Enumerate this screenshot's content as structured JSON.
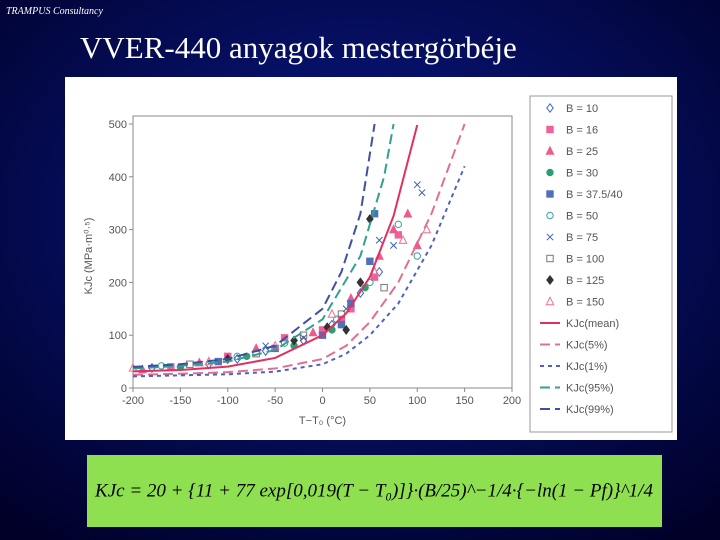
{
  "header": "TRAMPUS Consultancy",
  "title": "VVER-440 anyagok mestergörbéje",
  "formula": "KJc = 20 + {11 + 77 exp[0,019(T − T₀)]}·(B/25)^−1/4·{−ln(1 − Pf)}^1/4",
  "chart_data": {
    "type": "scatter",
    "xlabel": "T−T₀ (°C)",
    "ylabel": "KJc (MPa·m⁰·⁵)",
    "xlim": [
      -200,
      200
    ],
    "xticks": [
      -200,
      -150,
      -100,
      -50,
      0,
      50,
      100,
      150,
      200
    ],
    "ylim": [
      0,
      500
    ],
    "yticks": [
      0,
      100,
      200,
      300,
      400,
      500
    ],
    "legend": "right",
    "series": [
      {
        "name": "B = 10",
        "marker": "diamond-open",
        "color": "#3a66c8",
        "x": [
          -180,
          -120,
          -60,
          -20,
          10,
          40,
          60,
          -90
        ],
        "values": [
          38,
          45,
          70,
          90,
          120,
          180,
          220,
          55
        ]
      },
      {
        "name": "B = 16",
        "marker": "square",
        "color": "#f0609a",
        "x": [
          -160,
          -100,
          -40,
          0,
          30,
          55,
          80,
          20
        ],
        "values": [
          40,
          60,
          95,
          110,
          150,
          210,
          290,
          130
        ]
      },
      {
        "name": "B = 25",
        "marker": "triangle",
        "color": "#f05a8a",
        "x": [
          -190,
          -130,
          -70,
          -10,
          30,
          60,
          75,
          90,
          100
        ],
        "values": [
          35,
          48,
          75,
          105,
          170,
          250,
          300,
          330,
          270
        ]
      },
      {
        "name": "B = 30",
        "marker": "circle",
        "color": "#2aa070",
        "x": [
          -150,
          -80,
          -30,
          10,
          45
        ],
        "values": [
          40,
          60,
          80,
          110,
          190
        ]
      },
      {
        "name": "B = 37.5/40",
        "marker": "square",
        "color": "#5070b8",
        "x": [
          -110,
          -50,
          0,
          30,
          50,
          55,
          20
        ],
        "values": [
          50,
          75,
          100,
          160,
          240,
          330,
          120
        ]
      },
      {
        "name": "B = 50",
        "marker": "circle-open",
        "color": "#3aa0a0",
        "x": [
          -170,
          -90,
          -40,
          15,
          50,
          80,
          100
        ],
        "values": [
          42,
          60,
          85,
          130,
          200,
          310,
          250
        ]
      },
      {
        "name": "B = 75",
        "marker": "x",
        "color": "#4060b0",
        "x": [
          -60,
          -20,
          25,
          60,
          75,
          100,
          105
        ],
        "values": [
          80,
          95,
          150,
          280,
          270,
          385,
          370
        ]
      },
      {
        "name": "B = 100",
        "marker": "square-open",
        "color": "#777777",
        "x": [
          -140,
          -70,
          -20,
          20,
          65
        ],
        "values": [
          45,
          65,
          100,
          140,
          190
        ]
      },
      {
        "name": "B = 125",
        "marker": "diamond",
        "color": "#333333",
        "x": [
          -100,
          -30,
          5,
          40,
          50,
          25
        ],
        "values": [
          55,
          90,
          115,
          200,
          320,
          110
        ]
      },
      {
        "name": "B = 150",
        "marker": "triangle-open",
        "color": "#f07090",
        "x": [
          -200,
          -120,
          -50,
          10,
          55,
          85,
          110
        ],
        "values": [
          38,
          50,
          80,
          140,
          220,
          280,
          300
        ]
      },
      {
        "name": "KJc(mean)",
        "marker": "line",
        "dash": "",
        "color": "#e03060",
        "x": [
          -200,
          -150,
          -100,
          -50,
          0,
          25,
          50,
          75,
          100
        ],
        "values": [
          31.6,
          34,
          40.5,
          56.9,
          100,
          141.3,
          210.2,
          325.8,
          498
        ]
      },
      {
        "name": "KJc(5%)",
        "marker": "line",
        "dash": "10 5",
        "color": "#e07090",
        "x": [
          -200,
          -150,
          -100,
          -50,
          0,
          25,
          50,
          80,
          115,
          150
        ],
        "values": [
          25,
          27,
          30,
          37,
          55,
          80,
          125,
          200,
          330,
          500
        ]
      },
      {
        "name": "KJc(1%)",
        "marker": "line",
        "dash": "4 4",
        "color": "#5060c0",
        "x": [
          -200,
          -150,
          -100,
          -50,
          0,
          25,
          50,
          80,
          115,
          150
        ],
        "values": [
          22,
          24,
          26,
          31,
          45,
          65,
          100,
          160,
          270,
          420
        ]
      },
      {
        "name": "KJc(95%)",
        "marker": "line",
        "dash": "10 5",
        "color": "#30a090",
        "x": [
          -200,
          -150,
          -100,
          -50,
          0,
          40,
          65,
          75
        ],
        "values": [
          37,
          42,
          50,
          72,
          130,
          250,
          400,
          500
        ]
      },
      {
        "name": "KJc(99%)",
        "marker": "line",
        "dash": "10 5",
        "color": "#4050a0",
        "x": [
          -200,
          -150,
          -100,
          -50,
          0,
          20,
          40,
          55
        ],
        "values": [
          40,
          45,
          55,
          80,
          150,
          220,
          330,
          500
        ]
      }
    ]
  }
}
